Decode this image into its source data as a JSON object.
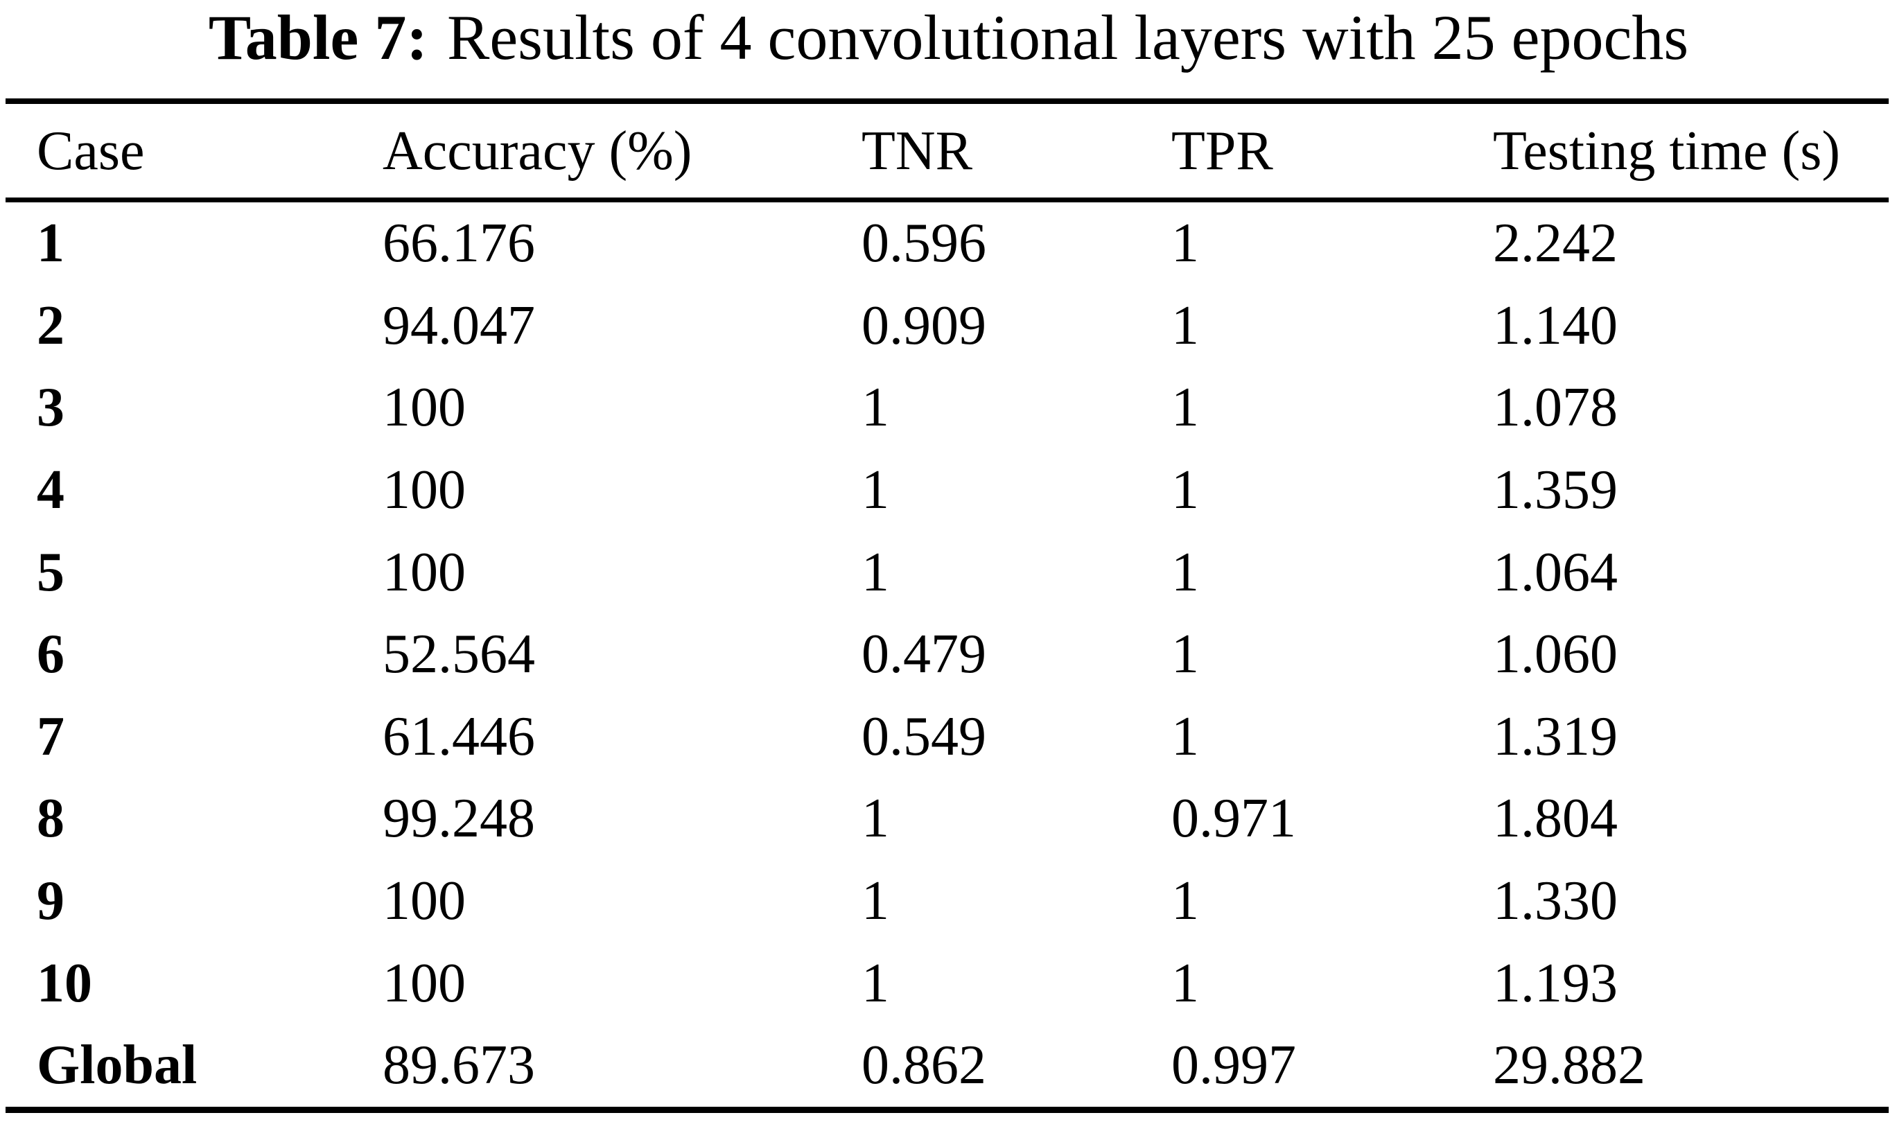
{
  "colors": {
    "text": "#000000",
    "background": "#ffffff"
  },
  "caption": {
    "label": "Table 7:",
    "text": "Results of 4 convolutional layers with 25 epochs"
  },
  "table": {
    "columns": [
      "Case",
      "Accuracy (%)",
      "TNR",
      "TPR",
      "Testing time (s)"
    ],
    "rows": [
      {
        "case": "1",
        "accuracy": "66.176",
        "tnr": "0.596",
        "tpr": "1",
        "time": "2.242"
      },
      {
        "case": "2",
        "accuracy": "94.047",
        "tnr": "0.909",
        "tpr": "1",
        "time": "1.140"
      },
      {
        "case": "3",
        "accuracy": "100",
        "tnr": "1",
        "tpr": "1",
        "time": "1.078"
      },
      {
        "case": "4",
        "accuracy": "100",
        "tnr": "1",
        "tpr": "1",
        "time": "1.359"
      },
      {
        "case": "5",
        "accuracy": "100",
        "tnr": "1",
        "tpr": "1",
        "time": "1.064"
      },
      {
        "case": "6",
        "accuracy": "52.564",
        "tnr": "0.479",
        "tpr": "1",
        "time": "1.060"
      },
      {
        "case": "7",
        "accuracy": "61.446",
        "tnr": "0.549",
        "tpr": "1",
        "time": "1.319"
      },
      {
        "case": "8",
        "accuracy": "99.248",
        "tnr": "1",
        "tpr": "0.971",
        "time": "1.804"
      },
      {
        "case": "9",
        "accuracy": "100",
        "tnr": "1",
        "tpr": "1",
        "time": "1.330"
      },
      {
        "case": "10",
        "accuracy": "100",
        "tnr": "1",
        "tpr": "1",
        "time": "1.193"
      },
      {
        "case": "Global",
        "accuracy": "89.673",
        "tnr": "0.862",
        "tpr": "0.997",
        "time": "29.882"
      }
    ]
  },
  "chart_data": {
    "type": "table",
    "title": "Table 7: Results of 4 convolutional layers with 25 epochs",
    "columns": [
      "Case",
      "Accuracy (%)",
      "TNR",
      "TPR",
      "Testing time (s)"
    ],
    "rows": [
      [
        "1",
        66.176,
        0.596,
        1,
        2.242
      ],
      [
        "2",
        94.047,
        0.909,
        1,
        1.14
      ],
      [
        "3",
        100,
        1,
        1,
        1.078
      ],
      [
        "4",
        100,
        1,
        1,
        1.359
      ],
      [
        "5",
        100,
        1,
        1,
        1.064
      ],
      [
        "6",
        52.564,
        0.479,
        1,
        1.06
      ],
      [
        "7",
        61.446,
        0.549,
        1,
        1.319
      ],
      [
        "8",
        99.248,
        1,
        0.971,
        1.804
      ],
      [
        "9",
        100,
        1,
        1,
        1.33
      ],
      [
        "10",
        100,
        1,
        1,
        1.193
      ],
      [
        "Global",
        89.673,
        0.862,
        0.997,
        29.882
      ]
    ]
  }
}
